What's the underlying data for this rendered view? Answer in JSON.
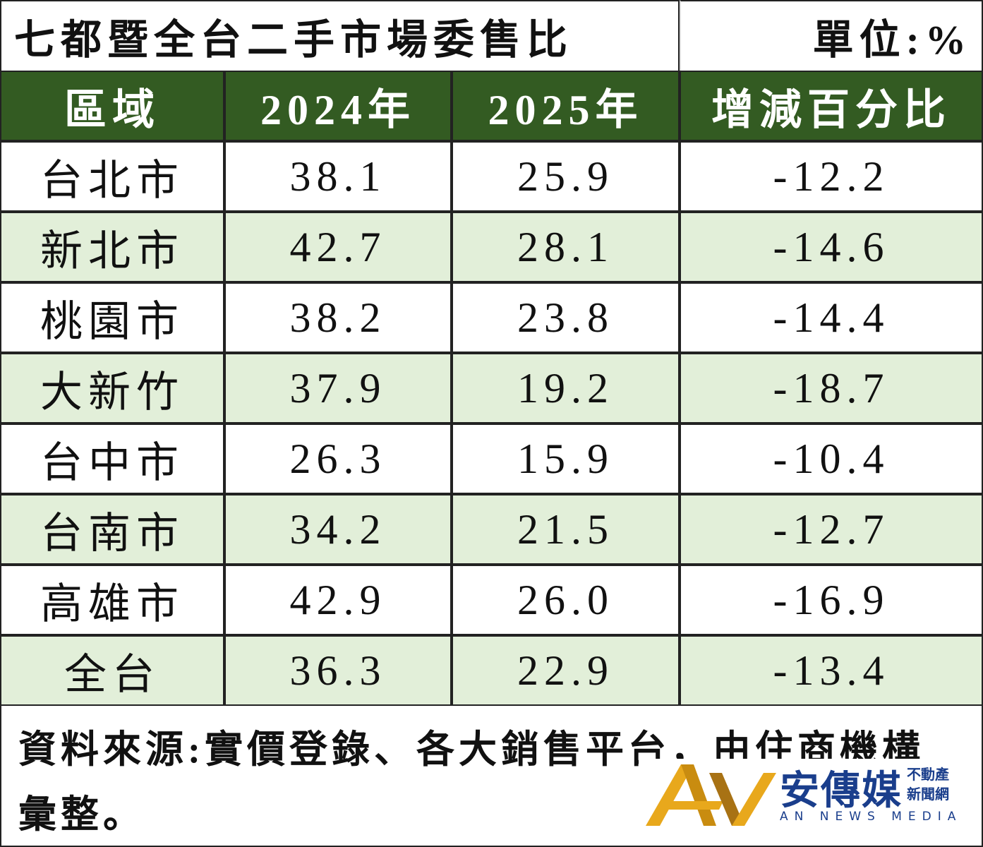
{
  "title": "七都暨全台二手市場委售比",
  "unit": "單位:%",
  "table": {
    "header": [
      "區域",
      "2024年",
      "2025年",
      "增減百分比"
    ],
    "rows": [
      [
        "台北市",
        "38.1",
        "25.9",
        "-12.2"
      ],
      [
        "新北市",
        "42.7",
        "28.1",
        "-14.6"
      ],
      [
        "桃園市",
        "38.2",
        "23.8",
        "-14.4"
      ],
      [
        "大新竹",
        "37.9",
        "19.2",
        "-18.7"
      ],
      [
        "台中市",
        "26.3",
        "15.9",
        "-10.4"
      ],
      [
        "台南市",
        "34.2",
        "21.5",
        "-12.7"
      ],
      [
        "高雄市",
        "42.9",
        "26.0",
        "-16.9"
      ],
      [
        "全台",
        "36.3",
        "22.9",
        "-13.4"
      ]
    ]
  },
  "source": "資料來源:實價登錄、各大銷售平台，由住商機構彙整。",
  "logo": {
    "name": "安傳媒",
    "tag1": "不動產",
    "tag2": "新聞網",
    "english": "AN NEWS MEDIA"
  }
}
